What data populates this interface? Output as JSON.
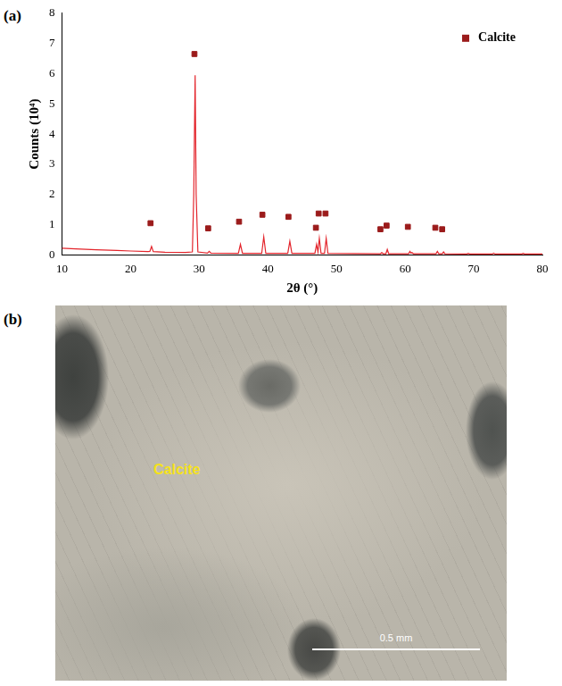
{
  "chart_data": {
    "type": "line",
    "panel_label": "(a)",
    "x_label": "2θ (°)",
    "y_label": "Counts (10⁴)",
    "xlim": [
      10,
      80
    ],
    "xticks": [
      10,
      20,
      30,
      40,
      50,
      60,
      70,
      80
    ],
    "ylim": [
      0,
      8
    ],
    "yticks": [
      0,
      1,
      2,
      3,
      4,
      5,
      6,
      7,
      8
    ],
    "grid": false,
    "legend": "top-right",
    "series": [
      {
        "type": "line",
        "color": "#e3242b",
        "x": [
          10,
          12,
          15,
          18,
          20,
          22.5,
          22.8,
          23.05,
          23.3,
          25,
          28,
          29.0,
          29.2,
          29.4,
          29.55,
          29.8,
          31.2,
          31.45,
          31.7,
          35.7,
          36.0,
          36.3,
          39.1,
          39.4,
          39.7,
          42.9,
          43.2,
          43.5,
          46.85,
          47.1,
          47.3,
          47.5,
          47.75,
          48.25,
          48.5,
          48.75,
          56.4,
          56.6,
          56.8,
          57.2,
          57.4,
          57.6,
          60.5,
          60.7,
          60.85,
          61.0,
          61.2,
          64.5,
          64.7,
          64.9,
          65.4,
          65.6,
          65.8,
          69.0,
          69.2,
          69.4,
          72.7,
          72.9,
          73.1,
          77.0,
          77.2,
          77.4,
          80
        ],
        "values": [
          0.22,
          0.2,
          0.17,
          0.15,
          0.13,
          0.11,
          0.12,
          0.28,
          0.11,
          0.09,
          0.08,
          0.1,
          2.0,
          5.95,
          2.0,
          0.1,
          0.06,
          0.12,
          0.06,
          0.05,
          0.35,
          0.05,
          0.05,
          0.6,
          0.05,
          0.05,
          0.45,
          0.05,
          0.05,
          0.35,
          0.1,
          0.55,
          0.05,
          0.05,
          0.55,
          0.05,
          0.04,
          0.08,
          0.04,
          0.04,
          0.18,
          0.04,
          0.04,
          0.12,
          0.06,
          0.08,
          0.04,
          0.04,
          0.12,
          0.04,
          0.04,
          0.1,
          0.04,
          0.03,
          0.05,
          0.03,
          0.03,
          0.06,
          0.03,
          0.03,
          0.05,
          0.03,
          0.03
        ]
      },
      {
        "name": "Calcite",
        "type": "scatter",
        "marker": "square",
        "color": "#9b1b1b",
        "x": [
          22.9,
          29.3,
          31.3,
          35.8,
          39.2,
          43.0,
          47.0,
          47.4,
          48.4,
          56.4,
          57.3,
          60.4,
          64.4,
          65.4
        ],
        "values": [
          1.05,
          6.65,
          0.88,
          1.1,
          1.33,
          1.26,
          0.9,
          1.37,
          1.37,
          0.85,
          0.97,
          0.93,
          0.9,
          0.85
        ]
      }
    ]
  },
  "photo": {
    "panel_label": "(b)",
    "label": "Calcite",
    "scale_bar": "0.5 mm"
  }
}
